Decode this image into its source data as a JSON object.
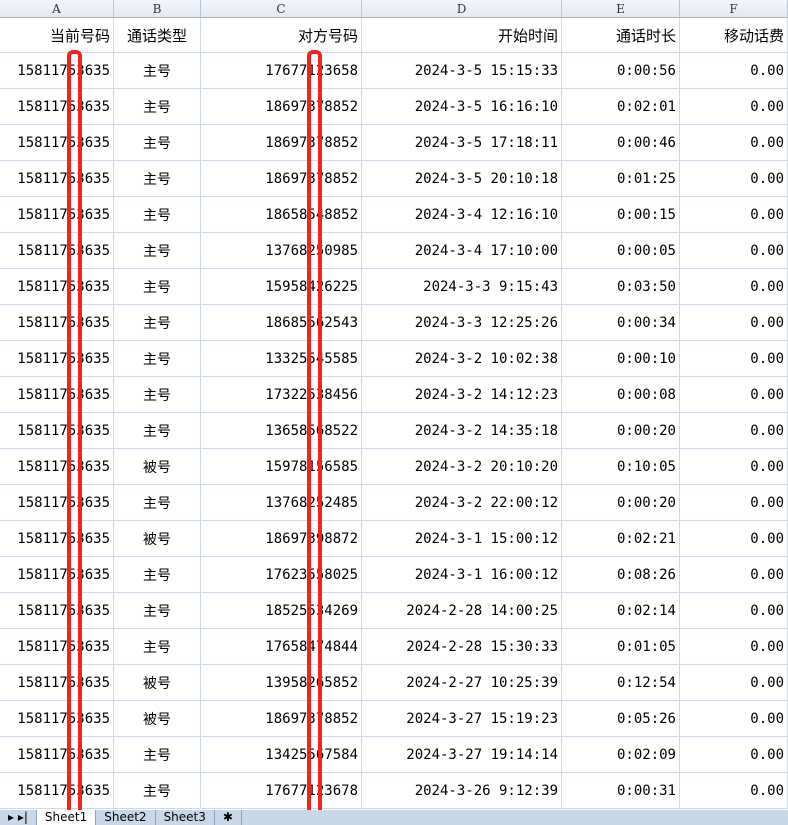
{
  "columns": [
    "A",
    "B",
    "C",
    "D",
    "E",
    "F"
  ],
  "headers": [
    "当前号码",
    "通话类型",
    "对方号码",
    "开始时间",
    "通话时长",
    "移动话费"
  ],
  "rows": [
    [
      "15811753635",
      "主号",
      "17677123658",
      "2024-3-5 15:15:33",
      "0:00:56",
      "0.00"
    ],
    [
      "15811753635",
      "主号",
      "18697378852",
      "2024-3-5 16:16:10",
      "0:02:01",
      "0.00"
    ],
    [
      "15811753635",
      "主号",
      "18697378852",
      "2024-3-5 17:18:11",
      "0:00:46",
      "0.00"
    ],
    [
      "15811753635",
      "主号",
      "18697378852",
      "2024-3-5 20:10:18",
      "0:01:25",
      "0.00"
    ],
    [
      "15811753635",
      "主号",
      "18658548852",
      "2024-3-4 12:16:10",
      "0:00:15",
      "0.00"
    ],
    [
      "15811753635",
      "主号",
      "13768250985",
      "2024-3-4 17:10:00",
      "0:00:05",
      "0.00"
    ],
    [
      "15811753635",
      "主号",
      "15958426225",
      "2024-3-3 9:15:43",
      "0:03:50",
      "0.00"
    ],
    [
      "15811753635",
      "主号",
      "18685562543",
      "2024-3-3 12:25:26",
      "0:00:34",
      "0.00"
    ],
    [
      "15811753635",
      "主号",
      "13325545585",
      "2024-3-2 10:02:38",
      "0:00:10",
      "0.00"
    ],
    [
      "15811753635",
      "主号",
      "17322538456",
      "2024-3-2 14:12:23",
      "0:00:08",
      "0.00"
    ],
    [
      "15811753635",
      "主号",
      "13658568522",
      "2024-3-2 14:35:18",
      "0:00:20",
      "0.00"
    ],
    [
      "15811753635",
      "被号",
      "15978156585",
      "2024-3-2 20:10:20",
      "0:10:05",
      "0.00"
    ],
    [
      "15811753635",
      "主号",
      "13768252485",
      "2024-3-2 22:00:12",
      "0:00:20",
      "0.00"
    ],
    [
      "15811753635",
      "被号",
      "18697398872",
      "2024-3-1 15:00:12",
      "0:02:21",
      "0.00"
    ],
    [
      "15811753635",
      "主号",
      "17623558025",
      "2024-3-1 16:00:12",
      "0:08:26",
      "0.00"
    ],
    [
      "15811753635",
      "主号",
      "18525534269",
      "2024-2-28 14:00:25",
      "0:02:14",
      "0.00"
    ],
    [
      "15811753635",
      "主号",
      "17658474844",
      "2024-2-28 15:30:33",
      "0:01:05",
      "0.00"
    ],
    [
      "15811753635",
      "被号",
      "13958265852",
      "2024-2-27 10:25:39",
      "0:12:54",
      "0.00"
    ],
    [
      "15811753635",
      "被号",
      "18697378852",
      "2024-3-27 15:19:23",
      "0:05:26",
      "0.00"
    ],
    [
      "15811753635",
      "主号",
      "13425567584",
      "2024-3-27 19:14:14",
      "0:02:09",
      "0.00"
    ],
    [
      "15811753635",
      "主号",
      "17677123678",
      "2024-3-26 9:12:39",
      "0:00:31",
      "0.00"
    ]
  ],
  "sheet_tabs": [
    "Sheet1",
    "Sheet2",
    "Sheet3"
  ],
  "redaction_color": "#f0241b"
}
